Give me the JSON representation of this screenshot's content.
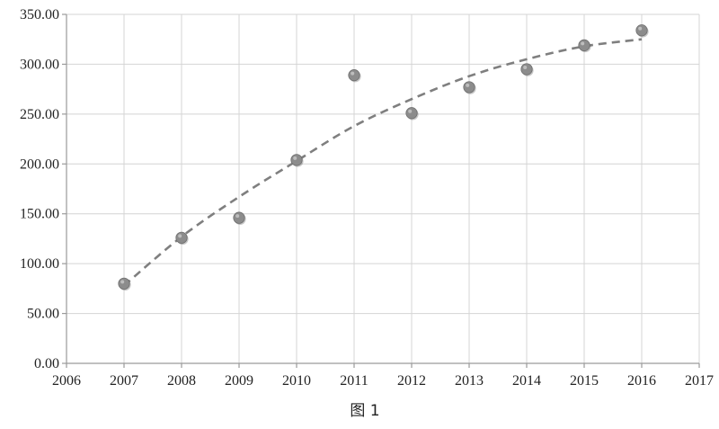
{
  "chart_data": {
    "type": "scatter",
    "caption": "图 1",
    "x": [
      2007,
      2008,
      2009,
      2010,
      2011,
      2012,
      2013,
      2014,
      2015,
      2016
    ],
    "y": [
      80,
      126,
      146,
      204,
      289,
      251,
      277,
      295,
      319,
      334
    ],
    "xlim": [
      2006,
      2017
    ],
    "ylim": [
      0,
      350
    ],
    "x_ticks": [
      2006,
      2007,
      2008,
      2009,
      2010,
      2011,
      2012,
      2013,
      2014,
      2015,
      2016,
      2017
    ],
    "y_ticks": [
      "0.00",
      "50.00",
      "100.00",
      "150.00",
      "200.00",
      "250.00",
      "300.00",
      "350.00"
    ],
    "trendline": {
      "type": "polynomial",
      "x": [
        2007,
        2008,
        2009,
        2010,
        2011,
        2012,
        2013,
        2014,
        2015,
        2016
      ],
      "y": [
        78,
        127,
        167,
        203,
        238,
        265,
        288,
        305,
        318,
        325
      ]
    },
    "grid": true,
    "marker_color": "#8c8c8c",
    "trend_color": "#7f7f7f"
  }
}
